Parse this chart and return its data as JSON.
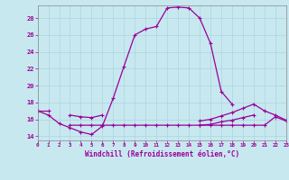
{
  "x": [
    0,
    1,
    2,
    3,
    4,
    5,
    6,
    7,
    8,
    9,
    10,
    11,
    12,
    13,
    14,
    15,
    16,
    17,
    18,
    19,
    20,
    21,
    22,
    23
  ],
  "y_main": [
    17.0,
    16.5,
    15.5,
    15.0,
    14.5,
    14.2,
    15.2,
    18.5,
    22.3,
    26.0,
    26.7,
    27.0,
    29.2,
    29.3,
    29.2,
    28.0,
    25.0,
    19.3,
    17.8,
    null,
    null,
    null,
    null,
    null
  ],
  "y_flat": [
    null,
    null,
    null,
    15.3,
    15.3,
    15.3,
    15.3,
    15.3,
    15.3,
    15.3,
    15.3,
    15.3,
    15.3,
    15.3,
    15.3,
    15.3,
    15.3,
    15.3,
    15.3,
    15.3,
    15.3,
    15.3,
    16.3,
    15.8
  ],
  "y_upper": [
    null,
    null,
    null,
    null,
    null,
    null,
    null,
    null,
    null,
    null,
    null,
    null,
    null,
    null,
    null,
    15.8,
    16.0,
    16.4,
    16.8,
    17.3,
    17.8,
    17.0,
    16.5,
    15.9
  ],
  "y_lower2": [
    null,
    null,
    null,
    null,
    null,
    null,
    null,
    null,
    null,
    null,
    null,
    null,
    null,
    null,
    null,
    15.3,
    15.4,
    15.7,
    15.9,
    16.2,
    16.5,
    null,
    null,
    null
  ],
  "y_dip": [
    null,
    null,
    null,
    16.5,
    16.3,
    16.2,
    16.5,
    null,
    null,
    null,
    null,
    null,
    null,
    null,
    null,
    null,
    null,
    null,
    null,
    null,
    null,
    null,
    null,
    null
  ],
  "y_start": [
    17.0,
    17.0,
    null,
    null,
    null,
    null,
    null,
    null,
    null,
    null,
    null,
    null,
    null,
    null,
    null,
    null,
    null,
    null,
    null,
    null,
    null,
    null,
    null,
    null
  ],
  "xlabel": "Windchill (Refroidissement éolien,°C)",
  "xlim": [
    0,
    23
  ],
  "ylim": [
    13.5,
    29.5
  ],
  "yticks": [
    14,
    16,
    18,
    20,
    22,
    24,
    26,
    28
  ],
  "xticks": [
    0,
    1,
    2,
    3,
    4,
    5,
    6,
    7,
    8,
    9,
    10,
    11,
    12,
    13,
    14,
    15,
    16,
    17,
    18,
    19,
    20,
    21,
    22,
    23
  ],
  "bg_color": "#c8e8f0",
  "line_color": "#990099",
  "grid_color": "#aad4e0"
}
